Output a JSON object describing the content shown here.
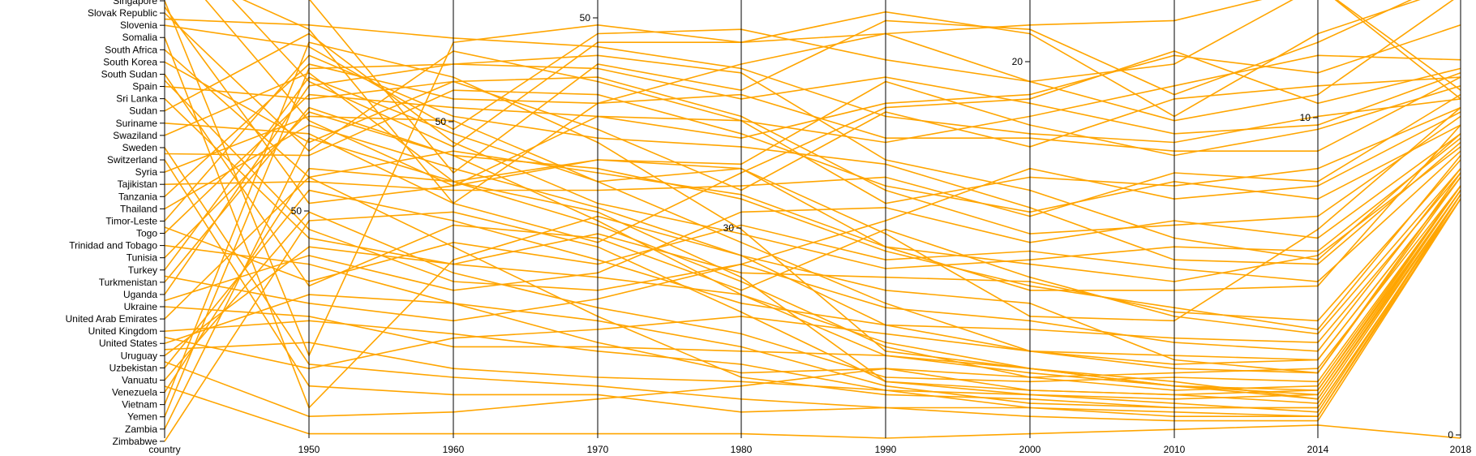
{
  "chart_data": {
    "type": "parallel-coordinates",
    "line_color": "#FFA500",
    "dimensions": [
      {
        "name": "country",
        "ticks": []
      },
      {
        "name": "1950",
        "ticks": [
          {
            "label": "50",
            "value": 50
          }
        ]
      },
      {
        "name": "1960",
        "ticks": [
          {
            "label": "50",
            "value": 50
          }
        ]
      },
      {
        "name": "1970",
        "ticks": [
          {
            "label": "50",
            "value": 50
          }
        ]
      },
      {
        "name": "1980",
        "ticks": [
          {
            "label": "30",
            "value": 30
          }
        ]
      },
      {
        "name": "1990",
        "ticks": []
      },
      {
        "name": "2000",
        "ticks": [
          {
            "label": "20",
            "value": 20
          }
        ]
      },
      {
        "name": "2010",
        "ticks": []
      },
      {
        "name": "2014",
        "ticks": [
          {
            "label": "10",
            "value": 10
          }
        ]
      },
      {
        "name": "2018",
        "ticks": [
          {
            "label": "0",
            "value": 0
          }
        ]
      }
    ],
    "country_labels": [
      "Singapore",
      "Slovak Republic",
      "Slovenia",
      "Somalia",
      "South Africa",
      "South Korea",
      "South Sudan",
      "Spain",
      "Sri Lanka",
      "Sudan",
      "Suriname",
      "Swaziland",
      "Sweden",
      "Switzerland",
      "Syria",
      "Tajikistan",
      "Tanzania",
      "Thailand",
      "Timor-Leste",
      "Togo",
      "Trinidad and Tobago",
      "Tunisia",
      "Turkey",
      "Turkmenistan",
      "Uganda",
      "Ukraine",
      "United Arab Emirates",
      "United Kingdom",
      "United States",
      "Uruguay",
      "Uzbekistan",
      "Vanuatu",
      "Venezuela",
      "Vietnam",
      "Yemen",
      "Zambia",
      "Zimbabwe"
    ],
    "series": [
      {
        "values": [
          -6,
          0.82,
          0.67,
          0.91,
          0.91,
          0.98,
          0.93,
          0.74,
          0.93,
          1.04
        ]
      },
      {
        "values": [
          -5,
          1.01,
          0.61,
          0.86,
          0.8,
          0.96,
          0.94,
          0.79,
          0.91,
          1.06
        ]
      },
      {
        "values": [
          -4,
          0.73,
          0.58,
          0.74,
          0.69,
          0.77,
          0.79,
          0.88,
          0.84,
          0.95
        ]
      },
      {
        "values": [
          -3,
          0.94,
          0.54,
          0.77,
          0.86,
          0.93,
          0.82,
          0.73,
          0.79,
          1.02
        ]
      },
      {
        "values": [
          0,
          0.19,
          0.91,
          0.95,
          0.91,
          0.93,
          0.95,
          0.96,
          1.04,
          0.78
        ]
      },
      {
        "values": [
          1,
          0.66,
          0.89,
          0.82,
          0.73,
          0.54,
          0.6,
          0.58,
          0.62,
          0.76
        ]
      },
      {
        "values": [
          2,
          0.9,
          0.71,
          0.93,
          0.94,
          0.87,
          0.82,
          0.86,
          1.04,
          0.8
        ]
      },
      {
        "values": [
          3,
          0.07,
          0.41,
          0.51,
          0.42,
          0.34,
          0.31,
          0.18,
          0.15,
          0.61
        ]
      },
      {
        "values": [
          4,
          0.6,
          0.66,
          0.61,
          0.56,
          0.44,
          0.34,
          0.34,
          0.35,
          0.72
        ]
      },
      {
        "values": [
          5,
          0.68,
          0.82,
          0.71,
          0.57,
          0.75,
          0.67,
          0.78,
          0.81,
          0.83
        ]
      },
      {
        "values": [
          6,
          0.35,
          0.49,
          0.46,
          0.34,
          0.48,
          0.37,
          0.28,
          0.24,
          0.62
        ]
      },
      {
        "values": [
          7,
          0.78,
          0.82,
          0.83,
          0.74,
          0.57,
          0.47,
          0.49,
          0.51,
          0.74
        ]
      },
      {
        "values": [
          8,
          0.46,
          0.4,
          0.47,
          0.38,
          0.37,
          0.36,
          0.29,
          0.27,
          0.64
        ]
      },
      {
        "values": [
          9,
          0.93,
          0.68,
          0.54,
          0.47,
          0.39,
          0.41,
          0.44,
          0.43,
          0.69
        ]
      },
      {
        "values": [
          10,
          0.7,
          0.54,
          0.45,
          0.61,
          0.76,
          0.78,
          0.89,
          0.77,
          0.85
        ]
      },
      {
        "values": [
          11,
          0.84,
          0.59,
          0.64,
          0.63,
          0.82,
          0.72,
          0.65,
          0.71,
          0.81
        ]
      },
      {
        "values": [
          12,
          0.17,
          0.14,
          0.12,
          0.09,
          0.07,
          0.07,
          0.06,
          0.05,
          0.56
        ]
      },
      {
        "values": [
          13,
          0.12,
          0.1,
          0.1,
          0.06,
          0.07,
          0.05,
          0.04,
          0.04,
          0.55
        ]
      },
      {
        "values": [
          14,
          0.74,
          0.73,
          0.59,
          0.62,
          0.47,
          0.28,
          0.27,
          0.48,
          0.76
        ]
      },
      {
        "values": [
          15,
          0.59,
          0.57,
          0.57,
          0.58,
          0.6,
          0.51,
          0.61,
          0.59,
          0.79
        ]
      },
      {
        "values": [
          16,
          0.86,
          0.78,
          0.77,
          0.79,
          0.69,
          0.69,
          0.66,
          0.66,
          0.83
        ]
      },
      {
        "values": [
          17,
          0.72,
          0.62,
          0.53,
          0.42,
          0.26,
          0.2,
          0.17,
          0.18,
          0.6
        ]
      },
      {
        "values": [
          18,
          0.88,
          0.74,
          0.69,
          0.67,
          0.63,
          0.53,
          0.41,
          0.4,
          0.68
        ]
      },
      {
        "values": [
          19,
          0.79,
          0.76,
          0.74,
          0.73,
          0.68,
          0.74,
          0.81,
          0.88,
          0.87
        ]
      },
      {
        "values": [
          20,
          0.4,
          0.31,
          0.22,
          0.15,
          0.16,
          0.14,
          0.15,
          0.16,
          0.58
        ]
      },
      {
        "values": [
          21,
          0.75,
          0.65,
          0.5,
          0.33,
          0.19,
          0.15,
          0.12,
          0.11,
          0.57
        ]
      },
      {
        "values": [
          22,
          0.83,
          0.7,
          0.59,
          0.45,
          0.31,
          0.2,
          0.16,
          0.15,
          0.6
        ]
      },
      {
        "values": [
          23,
          0.76,
          0.65,
          0.62,
          0.55,
          0.43,
          0.35,
          0.3,
          0.25,
          0.65
        ]
      },
      {
        "values": [
          24,
          0.81,
          0.86,
          0.85,
          0.78,
          0.83,
          0.77,
          0.7,
          0.72,
          0.84
        ]
      },
      {
        "values": [
          25,
          0.28,
          0.21,
          0.21,
          0.2,
          0.19,
          0.16,
          0.13,
          0.09,
          0.56
        ]
      },
      {
        "values": [
          26,
          0.6,
          0.44,
          0.28,
          0.14,
          0.1,
          0.09,
          0.07,
          0.07,
          0.55
        ]
      },
      {
        "values": [
          27,
          0.27,
          0.24,
          0.2,
          0.17,
          0.11,
          0.07,
          0.05,
          0.05,
          0.55
        ]
      },
      {
        "values": [
          28,
          0.33,
          0.31,
          0.27,
          0.21,
          0.12,
          0.08,
          0.07,
          0.07,
          0.55
        ]
      },
      {
        "values": [
          29,
          0.44,
          0.4,
          0.37,
          0.33,
          0.22,
          0.16,
          0.12,
          0.1,
          0.57
        ]
      },
      {
        "values": [
          30,
          0.57,
          0.5,
          0.41,
          0.31,
          0.26,
          0.25,
          0.23,
          0.22,
          0.61
        ]
      },
      {
        "values": [
          31,
          0.52,
          0.38,
          0.3,
          0.24,
          0.14,
          0.13,
          0.14,
          0.13,
          0.58
        ]
      },
      {
        "values": [
          32,
          0.62,
          0.59,
          0.49,
          0.36,
          0.21,
          0.14,
          0.11,
          0.12,
          0.58
        ]
      },
      {
        "values": [
          33,
          0.91,
          0.83,
          0.68,
          0.48,
          0.2,
          0.16,
          0.12,
          0.09,
          0.57
        ]
      },
      {
        "values": [
          34,
          0.85,
          0.86,
          0.88,
          0.84,
          0.64,
          0.57,
          0.46,
          0.41,
          0.7
        ]
      },
      {
        "values": [
          35,
          0.69,
          0.59,
          0.52,
          0.37,
          0.13,
          0.11,
          0.1,
          0.08,
          0.56
        ]
      },
      {
        "values": [
          36,
          0.5,
          0.52,
          0.44,
          0.29,
          0.13,
          0.1,
          0.08,
          0.06,
          0.56
        ]
      },
      {
        "values": [
          0.5,
          0.54,
          0.58,
          0.64,
          0.62,
          0.44,
          0.4,
          0.36,
          0.42,
          0.67
        ]
      },
      {
        "values": [
          1.5,
          0.95,
          0.92,
          0.9,
          0.85,
          0.74,
          0.7,
          0.68,
          0.74,
          0.78
        ]
      },
      {
        "values": [
          27.5,
          0.16,
          0.23,
          0.25,
          0.28,
          0.24,
          0.2,
          0.19,
          0.18,
          0.6
        ]
      },
      {
        "values": [
          28.5,
          0.22,
          0.16,
          0.14,
          0.13,
          0.11,
          0.1,
          0.09,
          0.1,
          0.57
        ]
      },
      {
        "values": [
          29.5,
          0.05,
          0.06,
          0.09,
          0.12,
          0.16,
          0.11,
          0.1,
          0.11,
          0.58
        ]
      },
      {
        "values": [
          31.5,
          0.01,
          0.01,
          0.01,
          0.01,
          0.0,
          0.01,
          0.02,
          0.03,
          0.0
        ]
      },
      {
        "values": [
          6.5,
          0.48,
          0.36,
          0.34,
          0.4,
          0.5,
          0.62,
          0.55,
          0.58,
          0.75
        ]
      },
      {
        "values": [
          12.5,
          0.65,
          0.8,
          0.79,
          0.7,
          0.58,
          0.52,
          0.59,
          0.55,
          0.72
        ]
      },
      {
        "values": [
          18.5,
          0.36,
          0.45,
          0.4,
          0.49,
          0.41,
          0.43,
          0.39,
          0.36,
          0.66
        ]
      },
      {
        "values": [
          22.5,
          0.31,
          0.27,
          0.32,
          0.4,
          0.3,
          0.27,
          0.22,
          0.2,
          0.62
        ]
      },
      {
        "values": [
          24.5,
          0.42,
          0.34,
          0.38,
          0.52,
          0.53,
          0.45,
          0.5,
          0.46,
          0.7
        ]
      }
    ]
  }
}
